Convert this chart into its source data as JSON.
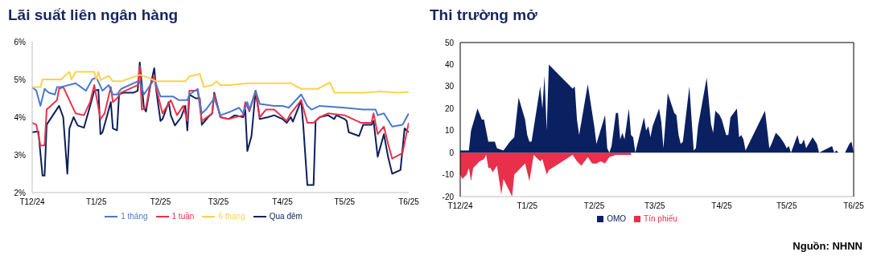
{
  "chart_data": [
    {
      "type": "line",
      "title": "Lãi suất liên ngân hàng",
      "legend": "bottom",
      "grid": false,
      "xlim": [
        "2024-12-01",
        "2025-06-01"
      ],
      "xticks": [
        {
          "value": "2024-12-01",
          "label": "T12/24"
        },
        {
          "value": "2025-01-01",
          "label": "T1/25"
        },
        {
          "value": "2025-02-01",
          "label": "T2/25"
        },
        {
          "value": "2025-03-01",
          "label": "T3/25"
        },
        {
          "value": "2025-04-01",
          "label": "T4/25"
        },
        {
          "value": "2025-05-01",
          "label": "T5/25"
        },
        {
          "value": "2025-06-01",
          "label": "T6/25"
        }
      ],
      "ylim": [
        2,
        6
      ],
      "yticks": [
        {
          "value": 2,
          "label": "2%"
        },
        {
          "value": 3,
          "label": "3%"
        },
        {
          "value": 4,
          "label": "4%"
        },
        {
          "value": 5,
          "label": "5%"
        },
        {
          "value": 6,
          "label": "6%"
        }
      ],
      "series": [
        {
          "name": "Qua đêm",
          "color": "#0d1f5c",
          "x": [
            "2024-12-01",
            "2024-12-04",
            "2024-12-06",
            "2024-12-07",
            "2024-12-08",
            "2024-12-11",
            "2024-12-14",
            "2024-12-16",
            "2024-12-18",
            "2024-12-19",
            "2024-12-21",
            "2024-12-23",
            "2024-12-26",
            "2024-12-29",
            "2024-12-31",
            "2025-01-02",
            "2025-01-03",
            "2025-01-04",
            "2025-01-06",
            "2025-01-08",
            "2025-01-09",
            "2025-01-11",
            "2025-01-12",
            "2025-01-14",
            "2025-01-19",
            "2025-01-21",
            "2025-01-22",
            "2025-01-24",
            "2025-01-25",
            "2025-01-27",
            "2025-01-29",
            "2025-01-30",
            "2025-02-01",
            "2025-02-02",
            "2025-02-05",
            "2025-02-06",
            "2025-02-08",
            "2025-02-11",
            "2025-02-13",
            "2025-02-14",
            "2025-02-15",
            "2025-02-18",
            "2025-02-20",
            "2025-02-21",
            "2025-02-24",
            "2025-02-26",
            "2025-02-27",
            "2025-03-02",
            "2025-03-06",
            "2025-03-09",
            "2025-03-13",
            "2025-03-14",
            "2025-03-15",
            "2025-03-17",
            "2025-03-19",
            "2025-03-21",
            "2025-03-25",
            "2025-03-28",
            "2025-04-01",
            "2025-04-03",
            "2025-04-05",
            "2025-04-06",
            "2025-04-09",
            "2025-04-10",
            "2025-04-11",
            "2025-04-13",
            "2025-04-16",
            "2025-04-17",
            "2025-04-19",
            "2025-04-23",
            "2025-04-26",
            "2025-04-27",
            "2025-05-01",
            "2025-05-02",
            "2025-05-03",
            "2025-05-08",
            "2025-05-10",
            "2025-05-14",
            "2025-05-15",
            "2025-05-17",
            "2025-05-20",
            "2025-05-22",
            "2025-05-24",
            "2025-05-28",
            "2025-05-30",
            "2025-06-01"
          ],
          "values": [
            3.6,
            3.62,
            2.45,
            2.45,
            3.8,
            4.05,
            4.3,
            4.0,
            2.5,
            3.7,
            4.0,
            3.78,
            3.72,
            4.3,
            4.7,
            4.73,
            3.55,
            3.6,
            4.0,
            4.4,
            3.7,
            3.65,
            4.6,
            4.65,
            4.65,
            4.7,
            5.45,
            4.25,
            4.15,
            4.8,
            5.3,
            4.7,
            3.9,
            3.95,
            4.4,
            4.05,
            3.78,
            4.0,
            4.3,
            3.65,
            4.6,
            4.5,
            4.5,
            3.8,
            4.0,
            4.1,
            4.65,
            4.0,
            3.95,
            4.05,
            4.0,
            4.2,
            3.1,
            3.5,
            4.7,
            3.95,
            4.0,
            4.05,
            3.95,
            3.85,
            4.0,
            3.88,
            4.3,
            4.45,
            3.8,
            2.2,
            2.2,
            3.9,
            4.0,
            4.05,
            3.95,
            4.05,
            3.95,
            3.9,
            3.6,
            3.5,
            3.8,
            3.8,
            3.9,
            2.95,
            3.55,
            2.95,
            2.5,
            2.6,
            3.7,
            3.6
          ]
        },
        {
          "name": "1 tuần",
          "color": "#e8334a",
          "x": [
            "2024-12-01",
            "2024-12-03",
            "2024-12-05",
            "2024-12-07",
            "2024-12-08",
            "2024-12-11",
            "2024-12-13",
            "2024-12-14",
            "2024-12-16",
            "2024-12-22",
            "2024-12-26",
            "2024-12-29",
            "2024-12-31",
            "2025-01-03",
            "2025-01-05",
            "2025-01-08",
            "2025-01-09",
            "2025-01-11",
            "2025-01-13",
            "2025-01-21",
            "2025-01-22",
            "2025-01-23",
            "2025-01-25",
            "2025-01-27",
            "2025-01-29",
            "2025-01-30",
            "2025-02-02",
            "2025-02-06",
            "2025-02-09",
            "2025-02-12",
            "2025-02-14",
            "2025-02-15",
            "2025-02-19",
            "2025-02-21",
            "2025-02-26",
            "2025-02-27",
            "2025-03-02",
            "2025-03-06",
            "2025-03-13",
            "2025-03-14",
            "2025-03-16",
            "2025-03-19",
            "2025-03-21",
            "2025-03-24",
            "2025-03-28",
            "2025-04-01",
            "2025-04-03",
            "2025-04-05",
            "2025-04-10",
            "2025-04-13",
            "2025-04-16",
            "2025-04-19",
            "2025-04-23",
            "2025-05-01",
            "2025-05-05",
            "2025-05-09",
            "2025-05-14",
            "2025-05-15",
            "2025-05-17",
            "2025-05-20",
            "2025-05-22",
            "2025-05-24",
            "2025-05-29",
            "2025-06-01"
          ],
          "values": [
            3.85,
            3.8,
            3.25,
            3.25,
            4.2,
            4.35,
            4.45,
            4.75,
            4.8,
            4.1,
            4.05,
            4.4,
            4.85,
            3.95,
            4.1,
            4.8,
            4.4,
            4.5,
            4.65,
            4.85,
            5.35,
            4.2,
            4.25,
            4.85,
            5.1,
            4.75,
            4.1,
            4.45,
            4.05,
            4.3,
            3.9,
            4.7,
            4.7,
            3.9,
            4.1,
            4.6,
            4.0,
            3.95,
            4.05,
            4.4,
            4.15,
            4.7,
            4.0,
            4.2,
            4.2,
            4.0,
            3.9,
            4.1,
            4.45,
            3.85,
            3.85,
            4.0,
            4.1,
            4.05,
            3.95,
            3.85,
            3.85,
            4.1,
            3.55,
            3.75,
            3.3,
            2.9,
            3.05,
            3.85
          ]
        },
        {
          "name": "1 tháng",
          "color": "#4a78d0",
          "x": [
            "2024-12-01",
            "2024-12-03",
            "2024-12-05",
            "2024-12-07",
            "2024-12-09",
            "2024-12-12",
            "2024-12-13",
            "2024-12-15",
            "2024-12-22",
            "2024-12-27",
            "2024-12-30",
            "2025-01-01",
            "2025-01-04",
            "2025-01-07",
            "2025-01-09",
            "2025-01-11",
            "2025-01-13",
            "2025-01-21",
            "2025-01-22",
            "2025-01-24",
            "2025-01-29",
            "2025-01-30",
            "2025-02-01",
            "2025-02-07",
            "2025-02-10",
            "2025-02-14",
            "2025-02-15",
            "2025-02-19",
            "2025-02-21",
            "2025-02-23",
            "2025-02-27",
            "2025-03-02",
            "2025-03-07",
            "2025-03-11",
            "2025-03-13",
            "2025-03-15",
            "2025-03-16",
            "2025-03-19",
            "2025-03-21",
            "2025-03-28",
            "2025-04-01",
            "2025-04-04",
            "2025-04-10",
            "2025-04-13",
            "2025-04-15",
            "2025-04-19",
            "2025-05-01",
            "2025-05-10",
            "2025-05-16",
            "2025-05-17",
            "2025-05-20",
            "2025-05-24",
            "2025-05-29",
            "2025-06-01"
          ],
          "values": [
            4.8,
            4.7,
            4.3,
            4.75,
            4.65,
            4.6,
            4.8,
            4.8,
            4.9,
            4.7,
            5.0,
            5.05,
            4.7,
            4.85,
            4.6,
            4.6,
            4.75,
            4.95,
            4.95,
            4.6,
            5.0,
            4.85,
            4.55,
            4.55,
            4.45,
            4.45,
            4.6,
            4.75,
            4.1,
            4.2,
            4.5,
            4.05,
            4.15,
            4.25,
            4.1,
            4.4,
            4.2,
            4.7,
            4.35,
            4.3,
            4.3,
            4.25,
            4.6,
            4.3,
            4.2,
            4.3,
            4.25,
            4.2,
            4.2,
            4.05,
            4.1,
            3.75,
            3.8,
            4.1
          ]
        },
        {
          "name": "6 tháng",
          "color": "#ffd24d",
          "x": [
            "2024-12-01",
            "2024-12-05",
            "2024-12-06",
            "2024-12-15",
            "2024-12-19",
            "2024-12-20",
            "2024-12-22",
            "2024-12-31",
            "2025-01-01",
            "2025-01-02",
            "2025-01-03",
            "2025-01-07",
            "2025-01-09",
            "2025-01-13",
            "2025-01-22",
            "2025-01-26",
            "2025-01-30",
            "2025-02-13",
            "2025-02-15",
            "2025-02-20",
            "2025-02-22",
            "2025-02-26",
            "2025-02-28",
            "2025-03-02",
            "2025-03-07",
            "2025-03-15",
            "2025-03-28",
            "2025-04-05",
            "2025-04-10",
            "2025-04-18",
            "2025-04-24",
            "2025-04-26",
            "2025-05-11",
            "2025-05-18",
            "2025-05-27",
            "2025-06-01"
          ],
          "values": [
            4.8,
            4.8,
            5.0,
            5.0,
            5.2,
            5.0,
            5.2,
            5.2,
            5.0,
            5.2,
            4.98,
            5.1,
            4.95,
            4.95,
            5.12,
            5.05,
            4.95,
            4.95,
            5.08,
            5.15,
            4.8,
            4.85,
            4.95,
            4.85,
            4.85,
            4.9,
            4.9,
            4.9,
            4.75,
            4.75,
            4.92,
            4.65,
            4.65,
            4.68,
            4.65,
            4.67
          ]
        }
      ]
    },
    {
      "type": "area",
      "title": "Thi trường mở",
      "legend": "bottom",
      "grid": false,
      "xlim": [
        "2024-12-01",
        "2025-06-01"
      ],
      "xticks": [
        {
          "value": "2024-12-01",
          "label": "T12/24"
        },
        {
          "value": "2025-01-01",
          "label": "T1/25"
        },
        {
          "value": "2025-02-01",
          "label": "T2/25"
        },
        {
          "value": "2025-03-01",
          "label": "T3/25"
        },
        {
          "value": "2025-04-01",
          "label": "T4/25"
        },
        {
          "value": "2025-05-01",
          "label": "T5/25"
        },
        {
          "value": "2025-06-01",
          "label": "T6/25"
        }
      ],
      "ylim": [
        -20,
        50
      ],
      "yticks": [
        -20,
        -10,
        0,
        10,
        20,
        30,
        40,
        50
      ],
      "annotations": [
        "Nguồn: NHNN"
      ],
      "series": [
        {
          "name": "Tín phiếu",
          "color": "#e8304a",
          "x": [
            "2024-12-01",
            "2024-12-02",
            "2024-12-04",
            "2024-12-05",
            "2024-12-06",
            "2024-12-07",
            "2024-12-10",
            "2024-12-12",
            "2024-12-13",
            "2024-12-14",
            "2024-12-15",
            "2024-12-16",
            "2024-12-18",
            "2024-12-20",
            "2024-12-21",
            "2024-12-25",
            "2024-12-26",
            "2024-12-29",
            "2024-12-31",
            "2025-01-02",
            "2025-01-04",
            "2025-01-07",
            "2025-01-08",
            "2025-01-10",
            "2025-01-11",
            "2025-01-22",
            "2025-01-24",
            "2025-01-26",
            "2025-01-29",
            "2025-01-31",
            "2025-02-02",
            "2025-02-04",
            "2025-02-06",
            "2025-02-08",
            "2025-02-11",
            "2025-02-18"
          ],
          "values": [
            -10,
            -12,
            -10,
            -7,
            -13,
            -7,
            -4,
            -3,
            -1,
            -7,
            -7,
            -9,
            -6,
            -19,
            -12,
            -20,
            -10,
            -7,
            -5,
            -13,
            -1,
            -4,
            -3,
            -10,
            -8,
            -1,
            -4,
            -6,
            -2,
            -5,
            -5,
            -4,
            -5,
            -2,
            -1,
            -1
          ]
        },
        {
          "name": "OMO",
          "color": "#0b2060",
          "x": [
            "2024-12-01",
            "2024-12-05",
            "2024-12-06",
            "2024-12-09",
            "2024-12-11",
            "2024-12-12",
            "2024-12-14",
            "2024-12-17",
            "2024-12-18",
            "2024-12-21",
            "2024-12-24",
            "2024-12-26",
            "2024-12-28",
            "2024-12-31",
            "2025-01-01",
            "2025-01-02",
            "2025-01-03",
            "2025-01-07",
            "2025-01-08",
            "2025-01-09",
            "2025-01-10",
            "2025-01-11",
            "2025-01-22",
            "2025-01-23",
            "2025-01-24",
            "2025-01-25",
            "2025-01-29",
            "2025-02-01",
            "2025-02-02",
            "2025-02-06",
            "2025-02-07",
            "2025-02-08",
            "2025-02-09",
            "2025-02-11",
            "2025-02-12",
            "2025-02-13",
            "2025-02-14",
            "2025-02-15",
            "2025-02-17",
            "2025-02-18",
            "2025-02-19",
            "2025-02-20",
            "2025-02-24",
            "2025-02-25",
            "2025-02-26",
            "2025-02-27",
            "2025-02-28",
            "2025-03-03",
            "2025-03-04",
            "2025-03-05",
            "2025-03-07",
            "2025-03-10",
            "2025-03-11",
            "2025-03-12",
            "2025-03-13",
            "2025-03-14",
            "2025-03-17",
            "2025-03-19",
            "2025-03-20",
            "2025-03-21",
            "2025-03-25",
            "2025-03-27",
            "2025-03-28",
            "2025-03-29",
            "2025-03-31",
            "2025-04-01",
            "2025-04-03",
            "2025-04-04",
            "2025-04-05",
            "2025-04-08",
            "2025-04-09",
            "2025-04-10",
            "2025-04-11",
            "2025-04-12",
            "2025-04-21",
            "2025-04-23",
            "2025-04-24",
            "2025-04-26",
            "2025-04-28",
            "2025-04-30",
            "2025-05-01",
            "2025-05-02",
            "2025-05-03",
            "2025-05-06",
            "2025-05-07",
            "2025-05-08",
            "2025-05-09",
            "2025-05-10",
            "2025-05-13",
            "2025-05-15",
            "2025-05-16",
            "2025-05-22",
            "2025-05-23",
            "2025-05-24",
            "2025-05-25",
            "2025-05-28",
            "2025-05-30",
            "2025-05-31",
            "2025-06-01"
          ],
          "values": [
            1,
            1,
            10,
            20,
            15,
            15,
            5,
            5,
            2,
            1,
            5,
            7,
            25,
            15,
            8,
            5,
            5,
            30,
            20,
            35,
            10,
            40,
            29,
            30,
            15,
            8,
            31,
            12,
            4,
            17,
            2,
            0,
            3,
            18,
            18,
            6,
            9,
            6,
            20,
            8,
            7,
            0,
            16,
            10,
            12,
            7,
            12,
            20,
            14,
            2,
            27,
            18,
            17,
            8,
            4,
            5,
            30,
            1,
            2,
            12,
            34,
            13,
            9,
            19,
            17,
            15,
            8,
            8,
            16,
            20,
            7,
            8,
            6,
            1,
            19,
            2,
            4,
            9,
            7,
            4,
            2,
            3,
            0,
            8,
            4,
            4,
            6,
            2,
            7,
            4,
            0,
            3,
            0,
            1,
            0,
            0,
            4,
            5,
            0
          ]
        }
      ]
    }
  ]
}
